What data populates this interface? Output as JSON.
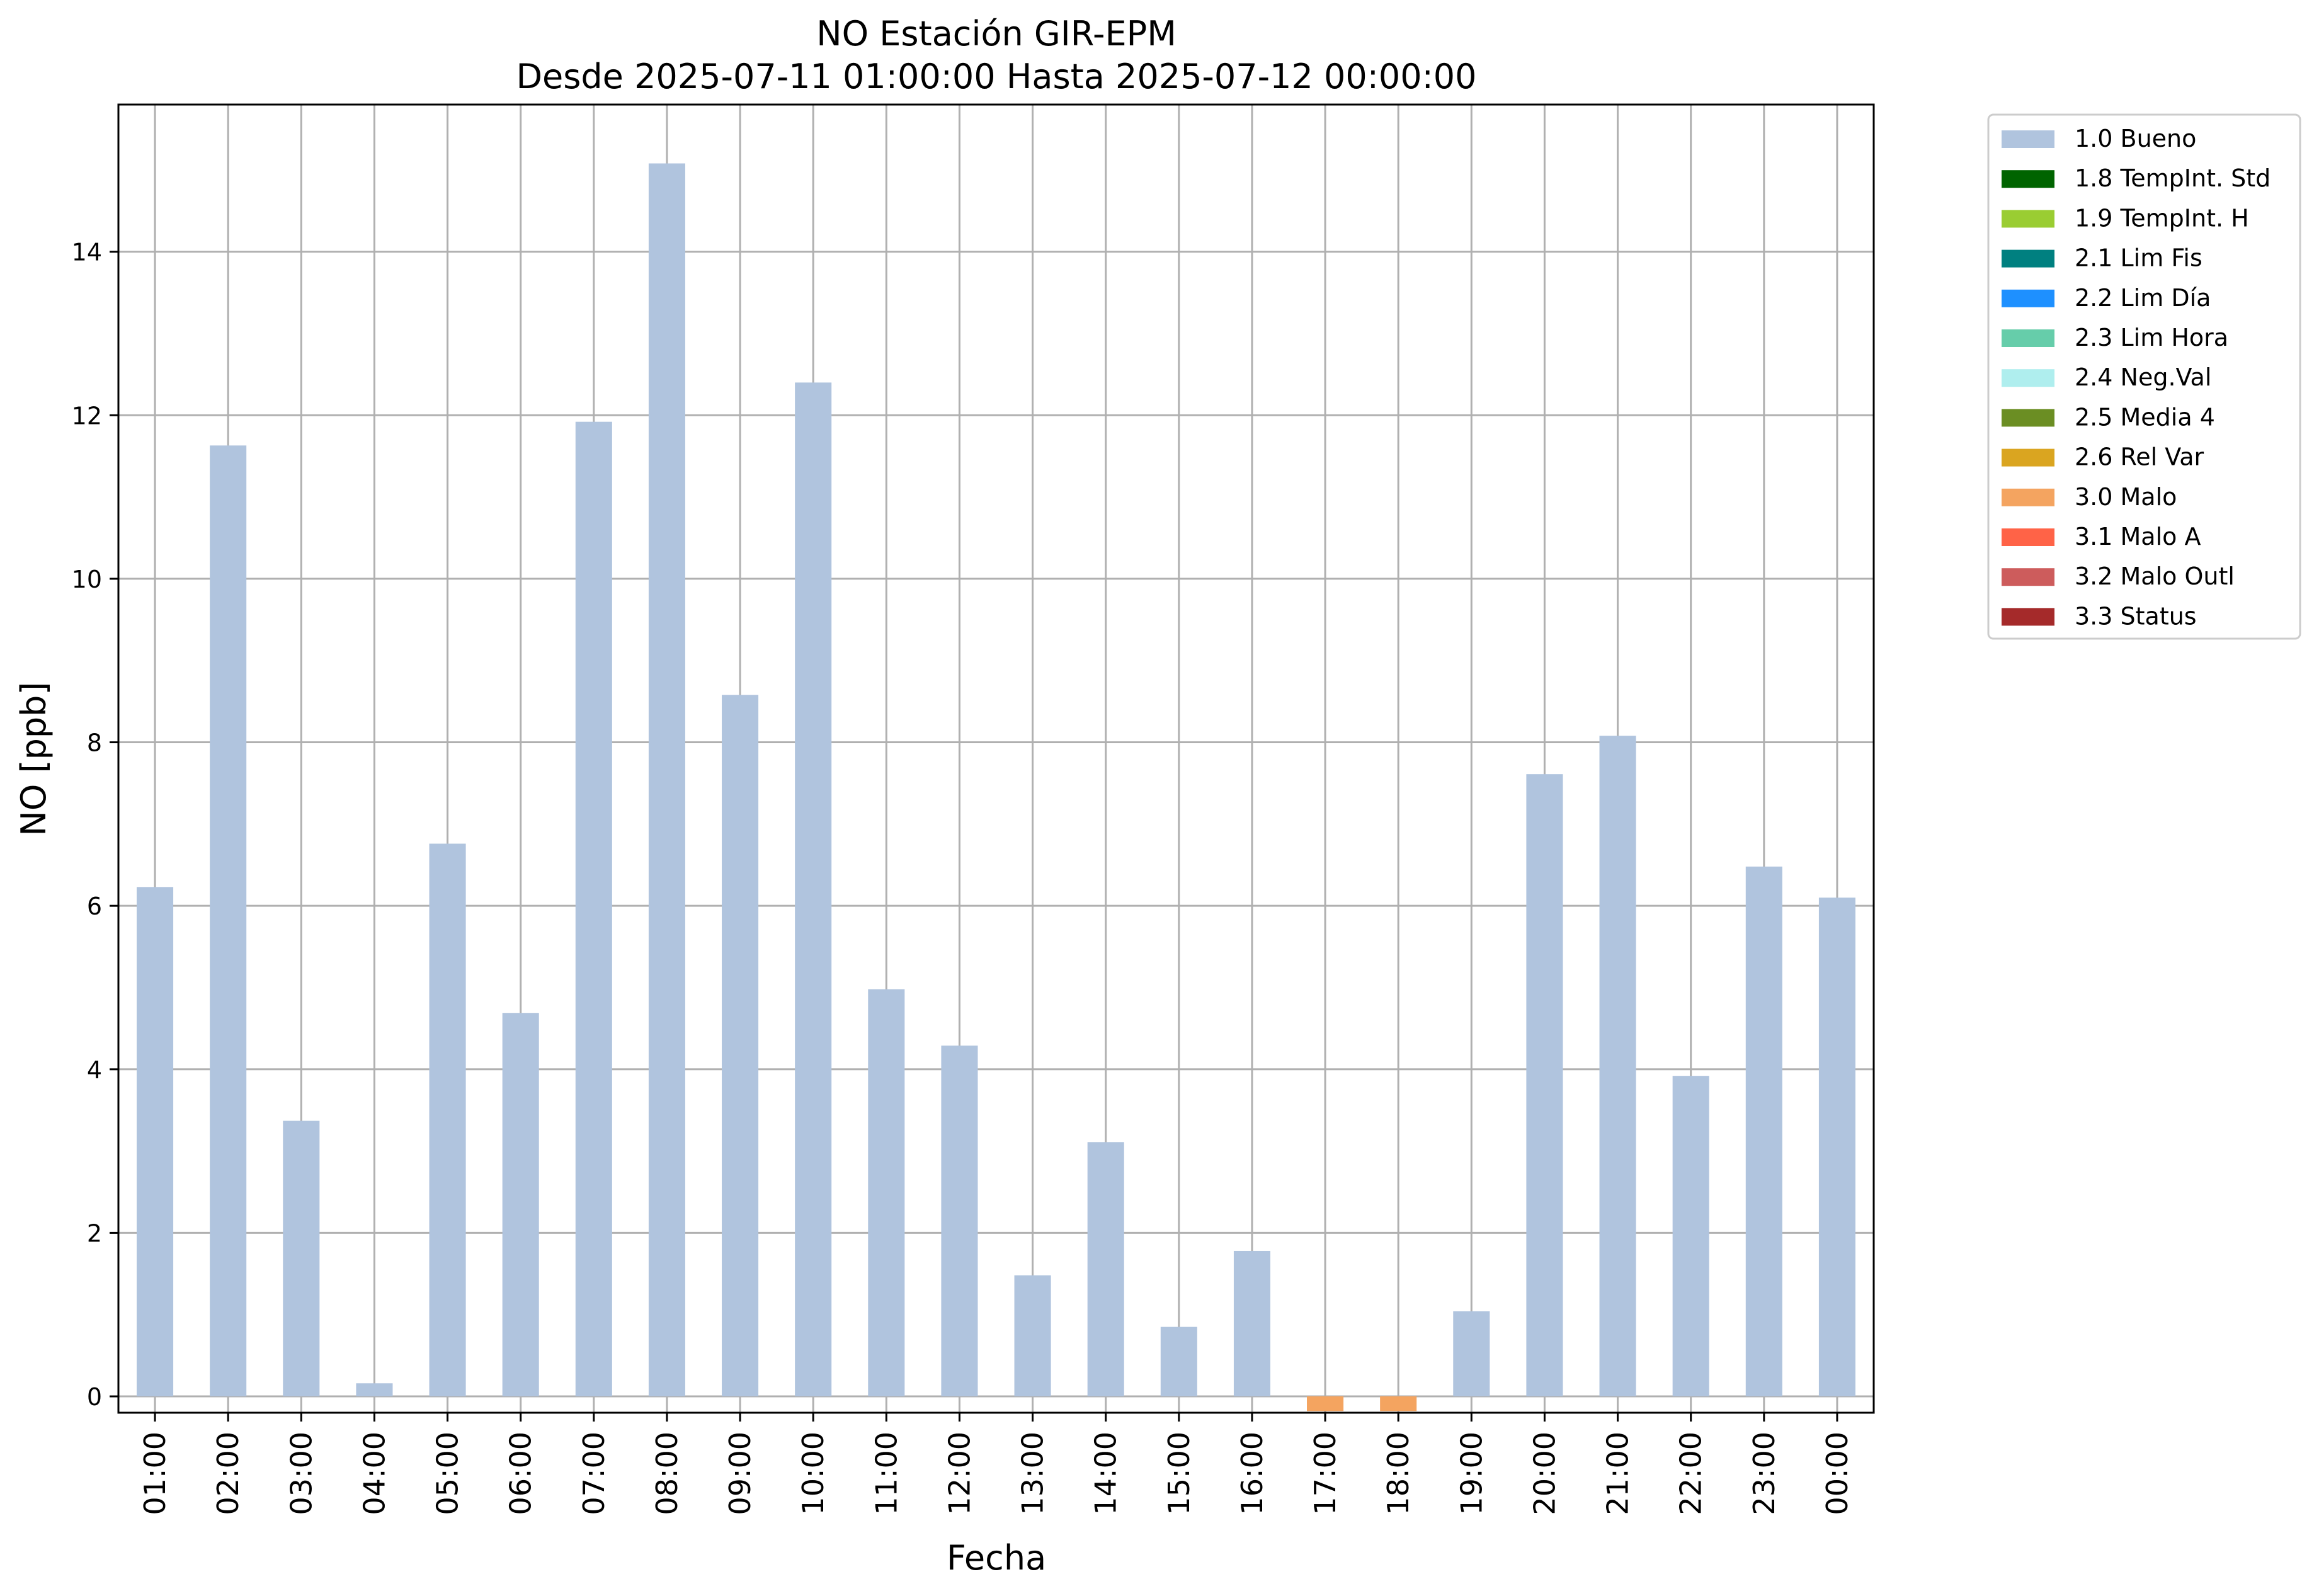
{
  "chart_data": {
    "type": "bar",
    "title": "NO Estación GIR-EPM",
    "subtitle": "Desde 2025-07-11 01:00:00 Hasta 2025-07-12 00:00:00",
    "xlabel": "Fecha",
    "ylabel": "NO [ppb]",
    "ylim": [
      -0.2,
      15.8
    ],
    "yticks": [
      0,
      2,
      4,
      6,
      8,
      10,
      12,
      14
    ],
    "grid": true,
    "legend_position": "outside-right-top",
    "categories": [
      "01:00",
      "02:00",
      "03:00",
      "04:00",
      "05:00",
      "06:00",
      "07:00",
      "08:00",
      "09:00",
      "10:00",
      "11:00",
      "12:00",
      "13:00",
      "14:00",
      "15:00",
      "16:00",
      "17:00",
      "18:00",
      "19:00",
      "20:00",
      "21:00",
      "22:00",
      "23:00",
      "00:00"
    ],
    "values": [
      6.23,
      11.63,
      3.37,
      0.16,
      6.76,
      4.69,
      11.92,
      15.08,
      8.58,
      12.4,
      4.98,
      4.29,
      1.48,
      3.11,
      0.85,
      1.78,
      -0.18,
      -0.18,
      1.04,
      7.61,
      8.08,
      3.92,
      6.48,
      6.1
    ],
    "flags": [
      "1.0",
      "1.0",
      "1.0",
      "1.0",
      "1.0",
      "1.0",
      "1.0",
      "1.0",
      "1.0",
      "1.0",
      "1.0",
      "1.0",
      "1.0",
      "1.0",
      "1.0",
      "1.0",
      "3.0",
      "3.0",
      "1.0",
      "1.0",
      "1.0",
      "1.0",
      "1.0",
      "1.0"
    ],
    "legend": [
      {
        "code": "1.0",
        "label": "1.0 Bueno",
        "color": "#b0c4de"
      },
      {
        "code": "1.8",
        "label": "1.8 TempInt. Std",
        "color": "#006400"
      },
      {
        "code": "1.9",
        "label": "1.9 TempInt. H",
        "color": "#9acd32"
      },
      {
        "code": "2.1",
        "label": "2.1 Lim Fis",
        "color": "#008080"
      },
      {
        "code": "2.2",
        "label": "2.2 Lim Día",
        "color": "#1e90ff"
      },
      {
        "code": "2.3",
        "label": "2.3 Lim Hora",
        "color": "#66cdaa"
      },
      {
        "code": "2.4",
        "label": "2.4 Neg.Val",
        "color": "#afeeee"
      },
      {
        "code": "2.5",
        "label": "2.5 Media 4",
        "color": "#6b8e23"
      },
      {
        "code": "2.6",
        "label": "2.6 Rel Var",
        "color": "#daa520"
      },
      {
        "code": "3.0",
        "label": "3.0 Malo",
        "color": "#f4a460"
      },
      {
        "code": "3.1",
        "label": "3.1 Malo A",
        "color": "#ff6347"
      },
      {
        "code": "3.2",
        "label": "3.2 Malo Outl",
        "color": "#cd5c5c"
      },
      {
        "code": "3.3",
        "label": "3.3 Status",
        "color": "#a52a2a"
      }
    ]
  }
}
